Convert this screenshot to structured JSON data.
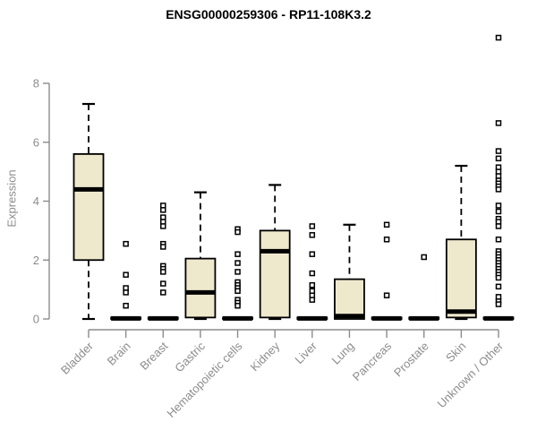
{
  "chart_data": {
    "type": "boxplot",
    "title": "ENSG00000259306 - RP11-108K3.2",
    "ylabel": "Expression",
    "xlabel": "",
    "ylim": [
      0,
      8
    ],
    "yticks": [
      0,
      2,
      4,
      6,
      8
    ],
    "grid": false,
    "legend": "none",
    "categories": [
      "Bladder",
      "Brain",
      "Breast",
      "Gastric",
      "Hematopoietic cells",
      "Kidney",
      "Liver",
      "Lung",
      "Pancreas",
      "Prostate",
      "Skin",
      "Unknown / Other"
    ],
    "boxes": [
      {
        "label": "Bladder",
        "min": 0,
        "q1": 2.0,
        "median": 4.4,
        "q3": 5.6,
        "max": 7.3,
        "outliers": []
      },
      {
        "label": "Brain",
        "min": 0,
        "q1": 0,
        "median": 0.02,
        "q3": 0.05,
        "max": 0.05,
        "outliers": [
          2.55,
          1.5,
          1.05,
          0.9,
          0.45
        ]
      },
      {
        "label": "Breast",
        "min": 0,
        "q1": 0,
        "median": 0.02,
        "q3": 0.05,
        "max": 0.05,
        "outliers": [
          3.85,
          3.7,
          3.45,
          3.3,
          3.15,
          2.55,
          2.45,
          1.8,
          1.7,
          1.6,
          1.2,
          0.9
        ]
      },
      {
        "label": "Gastric",
        "min": 0,
        "q1": 0.05,
        "median": 0.9,
        "q3": 2.05,
        "max": 4.3,
        "outliers": []
      },
      {
        "label": "Hematopoietic cells",
        "min": 0,
        "q1": 0,
        "median": 0.02,
        "q3": 0.05,
        "max": 0.05,
        "outliers": [
          3.05,
          2.95,
          2.2,
          1.9,
          1.6,
          1.25,
          1.15,
          1.05,
          0.95,
          0.65,
          0.55,
          0.45
        ]
      },
      {
        "label": "Kidney",
        "min": 0,
        "q1": 0.05,
        "median": 2.3,
        "q3": 3.0,
        "max": 4.55,
        "outliers": []
      },
      {
        "label": "Liver",
        "min": 0,
        "q1": 0,
        "median": 0.02,
        "q3": 0.05,
        "max": 0.05,
        "outliers": [
          3.15,
          2.85,
          2.2,
          1.55,
          1.15,
          0.95,
          0.8,
          0.65
        ]
      },
      {
        "label": "Lung",
        "min": 0,
        "q1": 0,
        "median": 0.1,
        "q3": 1.35,
        "max": 3.2,
        "outliers": []
      },
      {
        "label": "Pancreas",
        "min": 0,
        "q1": 0,
        "median": 0.02,
        "q3": 0.05,
        "max": 0.05,
        "outliers": [
          3.2,
          2.7,
          0.8
        ]
      },
      {
        "label": "Prostate",
        "min": 0,
        "q1": 0,
        "median": 0.02,
        "q3": 0.05,
        "max": 0.05,
        "outliers": [
          2.1
        ]
      },
      {
        "label": "Skin",
        "min": 0,
        "q1": 0.05,
        "median": 0.25,
        "q3": 2.7,
        "max": 5.2,
        "outliers": []
      },
      {
        "label": "Unknown / Other",
        "min": 0,
        "q1": 0,
        "median": 0.02,
        "q3": 0.05,
        "max": 0.05,
        "outliers": [
          9.55,
          6.65,
          5.7,
          5.45,
          5.15,
          5.0,
          4.85,
          4.7,
          4.6,
          4.5,
          4.4,
          3.85,
          3.65,
          3.4,
          3.3,
          3.15,
          2.7,
          2.3,
          2.2,
          2.1,
          2.0,
          1.9,
          1.8,
          1.7,
          1.6,
          1.5,
          1.4,
          1.1,
          0.75,
          0.6,
          0.5
        ]
      }
    ],
    "colors": {
      "box_fill": "#EEE8CD",
      "box_stroke": "#000000",
      "median": "#000000",
      "whisker": "#000000",
      "outlier_fill": "#FFFFFF",
      "outlier_stroke": "#000000",
      "axis": "#8C8C8C",
      "tick_text": "#8C8C8C",
      "title_text": "#000000",
      "background": "#FFFFFF"
    }
  }
}
